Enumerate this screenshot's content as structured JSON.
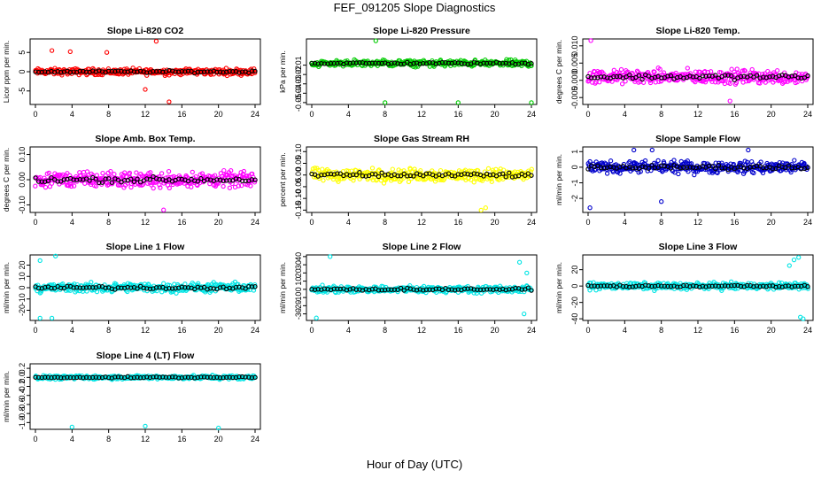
{
  "figure": {
    "title": "FEF_091205  Slope Diagnostics",
    "xlabel": "Hour of Day (UTC)"
  },
  "chart_data": [
    {
      "type": "scatter",
      "title": "Slope Li-820 CO2",
      "ylabel": "Licor ppm per min.",
      "xlim": [
        0,
        24
      ],
      "ylim": [
        -8.5,
        8.5
      ],
      "xticks": [
        0,
        4,
        8,
        12,
        16,
        20,
        24
      ],
      "yticks": [
        -5,
        0,
        5
      ],
      "ytick_labels": [
        "-5",
        "0",
        "5"
      ],
      "color": "#ff0000",
      "spread": 1.2,
      "outliers": [
        [
          1.8,
          5.5
        ],
        [
          7.8,
          5.0
        ],
        [
          13.2,
          7.9
        ],
        [
          12.0,
          -4.6
        ],
        [
          3.8,
          5.2
        ],
        [
          14.6,
          -7.8
        ]
      ]
    },
    {
      "type": "scatter",
      "title": "Slope Li-820 Pressure",
      "ylabel": "kPa per min.",
      "xlim": [
        0,
        24
      ],
      "ylim": [
        -0.052,
        0.018
      ],
      "xticks": [
        0,
        4,
        8,
        12,
        16,
        20,
        24
      ],
      "yticks": [
        -0.05,
        -0.04,
        -0.03,
        -0.02,
        -0.01
      ],
      "ytick_labels": [
        "-0.05",
        "-0.04",
        "-0.03",
        "-0.02",
        "-0.01"
      ],
      "color": "#00cc00",
      "spread": 0.005,
      "center": -0.008,
      "outliers": [
        [
          8.0,
          -0.05
        ],
        [
          16.0,
          -0.05
        ],
        [
          24.0,
          -0.05
        ],
        [
          7.0,
          0.016
        ]
      ]
    },
    {
      "type": "scatter",
      "title": "Slope Li-820 Temp.",
      "ylabel": "degrees C per min.",
      "xlim": [
        0,
        24
      ],
      "ylim": [
        -0.007,
        0.012
      ],
      "xticks": [
        0,
        4,
        8,
        12,
        16,
        20,
        24
      ],
      "yticks": [
        -0.005,
        0.0,
        0.005,
        0.01
      ],
      "ytick_labels": [
        "-0.005",
        "0.000",
        "0.005",
        "0.010"
      ],
      "color": "#ff00ff",
      "spread": 0.003,
      "center": 0.001,
      "outliers": [
        [
          0.3,
          0.0115
        ],
        [
          15.5,
          -0.006
        ]
      ]
    },
    {
      "type": "scatter",
      "title": "Slope Amb. Box Temp.",
      "ylabel": "degrees C per min.",
      "xlim": [
        0,
        24
      ],
      "ylim": [
        -0.13,
        0.13
      ],
      "xticks": [
        0,
        4,
        8,
        12,
        16,
        20,
        24
      ],
      "yticks": [
        -0.1,
        0.0,
        0.1
      ],
      "ytick_labels": [
        "-0.10",
        "0.00",
        "0.10"
      ],
      "color": "#ff00ff",
      "spread": 0.045,
      "center": 0.0,
      "outliers": [
        [
          14.0,
          -0.12
        ]
      ]
    },
    {
      "type": "scatter",
      "title": "Slope Gas Stream RH",
      "ylabel": "percent per min.",
      "xlim": [
        0,
        24
      ],
      "ylim": [
        -0.16,
        0.12
      ],
      "xticks": [
        0,
        4,
        8,
        12,
        16,
        20,
        24
      ],
      "yticks": [
        -0.15,
        -0.1,
        -0.05,
        0.0,
        0.05,
        0.1
      ],
      "ytick_labels": [
        "-0.15",
        "-0.10",
        "-0.05",
        "0.00",
        "0.05",
        "0.10"
      ],
      "color": "#ffff00",
      "spread": 0.04,
      "center": 0.0,
      "outliers": [
        [
          18.5,
          -0.15
        ],
        [
          19.0,
          -0.14
        ]
      ]
    },
    {
      "type": "scatter",
      "title": "Slope Sample Flow",
      "ylabel": "ml/min per min.",
      "xlim": [
        0,
        24
      ],
      "ylim": [
        -2.9,
        1.3
      ],
      "xticks": [
        0,
        4,
        8,
        12,
        16,
        20,
        24
      ],
      "yticks": [
        -2,
        -1,
        0,
        1
      ],
      "ytick_labels": [
        "-2",
        "-1",
        "0",
        "1"
      ],
      "color": "#0000cc",
      "spread": 0.55,
      "center": 0.0,
      "outliers": [
        [
          0.2,
          -2.6
        ],
        [
          5.0,
          1.1
        ],
        [
          7.0,
          1.1
        ],
        [
          17.5,
          1.1
        ],
        [
          8.0,
          -2.2
        ]
      ]
    },
    {
      "type": "scatter",
      "title": "Slope Line 1 Flow",
      "ylabel": "ml/min per min.",
      "xlim": [
        0,
        24
      ],
      "ylim": [
        -29,
        29
      ],
      "xticks": [
        0,
        4,
        8,
        12,
        16,
        20,
        24
      ],
      "yticks": [
        -20,
        -10,
        0,
        10,
        20
      ],
      "ytick_labels": [
        "-20",
        "-10",
        "0",
        "10",
        "20"
      ],
      "color": "#00e5e5",
      "spread": 6,
      "center": 0.0,
      "outliers": [
        [
          2.2,
          28
        ],
        [
          0.5,
          24
        ],
        [
          0.5,
          -27
        ],
        [
          1.8,
          -27
        ]
      ]
    },
    {
      "type": "scatter",
      "title": "Slope Line 2 Flow",
      "ylabel": "ml/min per min.",
      "xlim": [
        0,
        24
      ],
      "ylim": [
        -38,
        42
      ],
      "xticks": [
        0,
        4,
        8,
        12,
        16,
        20,
        24
      ],
      "yticks": [
        -30,
        -20,
        -10,
        0,
        10,
        20,
        30,
        40
      ],
      "ytick_labels": [
        "-30",
        "-20",
        "-10",
        "0",
        "10",
        "20",
        "30",
        "40"
      ],
      "color": "#00e5e5",
      "spread": 6,
      "center": 0.0,
      "outliers": [
        [
          2.0,
          40
        ],
        [
          22.7,
          33
        ],
        [
          0.5,
          -35
        ],
        [
          23.2,
          -30
        ],
        [
          23.5,
          20
        ]
      ]
    },
    {
      "type": "scatter",
      "title": "Slope Line 3 Flow",
      "ylabel": "ml/min per min.",
      "xlim": [
        0,
        24
      ],
      "ylim": [
        -42,
        38
      ],
      "xticks": [
        0,
        4,
        8,
        12,
        16,
        20,
        24
      ],
      "yticks": [
        -40,
        -20,
        0,
        20
      ],
      "ytick_labels": [
        "-40",
        "-20",
        "0",
        "20"
      ],
      "color": "#00e5e5",
      "spread": 6,
      "center": 0.0,
      "outliers": [
        [
          22.5,
          32
        ],
        [
          23.0,
          35
        ],
        [
          23.2,
          -38
        ],
        [
          23.5,
          -40
        ],
        [
          22.0,
          25
        ]
      ]
    },
    {
      "type": "scatter",
      "title": "Slope Line 4 (LT) Flow",
      "ylabel": "ml/min per min.",
      "xlim": [
        0,
        24
      ],
      "ylim": [
        -1.15,
        0.3
      ],
      "xticks": [
        0,
        4,
        8,
        12,
        16,
        20,
        24
      ],
      "yticks": [
        -1.0,
        -0.8,
        -0.6,
        -0.4,
        -0.2,
        0.0,
        0.2
      ],
      "ytick_labels": [
        "-1.0",
        "-0.8",
        "-0.6",
        "-0.4",
        "-0.2",
        "0.0",
        "0.2"
      ],
      "color": "#00e5e5",
      "spread": 0.06,
      "center": 0.0,
      "outliers": [
        [
          4.0,
          -1.1
        ],
        [
          12.0,
          -1.08
        ],
        [
          20.0,
          -1.12
        ]
      ]
    }
  ]
}
